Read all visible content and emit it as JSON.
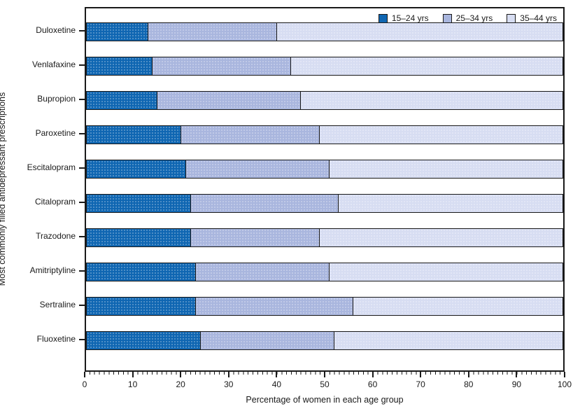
{
  "figure": {
    "y_axis_title": "Most commonly filled antidepressant prescriptions",
    "x_axis_title": "Percentage of women in each age group"
  },
  "chart_data": {
    "type": "bar",
    "orientation": "horizontal",
    "stacked": true,
    "title": "",
    "xlabel": "Percentage of women in each age group",
    "ylabel": "Most commonly filled antidepressant prescriptions",
    "xlim": [
      0,
      100
    ],
    "x_ticks": [
      "0",
      "10",
      "20",
      "30",
      "40",
      "50",
      "60",
      "70",
      "80",
      "90",
      "100"
    ],
    "grid": false,
    "legend_position": "top-right-inside",
    "categories": [
      "Duloxetine",
      "Venlafaxine",
      "Bupropion",
      "Paroxetine",
      "Escitalopram",
      "Citalopram",
      "Trazodone",
      "Amitriptyline",
      "Sertraline",
      "Fluoxetine"
    ],
    "series": [
      {
        "name": "15–24 yrs",
        "color": "#0f66b2",
        "values": [
          13,
          14,
          15,
          20,
          21,
          22,
          22,
          23,
          23,
          24
        ]
      },
      {
        "name": "25–34 yrs",
        "color": "#a9b6de",
        "values": [
          27,
          29,
          30,
          29,
          30,
          31,
          27,
          28,
          33,
          28
        ]
      },
      {
        "name": "35–44 yrs",
        "color": "#d7ddf2",
        "values": [
          60,
          57,
          55,
          51,
          49,
          47,
          51,
          49,
          44,
          48
        ]
      }
    ]
  },
  "colors": {
    "plot_border": "#1a1a1a",
    "background": "#ffffff"
  }
}
